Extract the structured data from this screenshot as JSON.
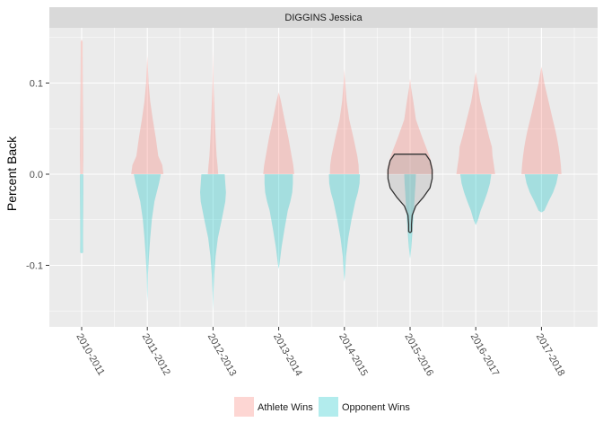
{
  "chart_data": {
    "type": "violin",
    "facet_title": "DIGGINS Jessica",
    "ylabel": "Percent Back",
    "xlabel": "",
    "categories": [
      "2010-2011",
      "2011-2012",
      "2012-2013",
      "2013-2014",
      "2014-2015",
      "2015-2016",
      "2016-2017",
      "2017-2018"
    ],
    "y_ticks": [
      0.1,
      0.0,
      -0.1
    ],
    "y_tick_labels": [
      "0.1",
      "0.0",
      "-0.1"
    ],
    "ylim": [
      -0.16,
      0.16
    ],
    "grid": true,
    "legend_position": "bottom",
    "colors": {
      "athlete_wins": "#f8766d",
      "opponent_wins": "#00bfc4",
      "panel_bg": "#ebebeb",
      "strip_bg": "#d9d9d9",
      "grid": "#ffffff"
    },
    "series": [
      {
        "name": "Athlete Wins",
        "key": "athlete_wins",
        "violins": [
          {
            "category": "2010-2011",
            "profile": [
              [
                0.0,
                0.042
              ],
              [
                0.02,
                0.05
              ],
              [
                0.05,
                0.048
              ],
              [
                0.08,
                0.04
              ],
              [
                0.11,
                0.032
              ],
              [
                0.13,
                0.03
              ],
              [
                0.145,
                0.03
              ],
              [
                0.148,
                0.0
              ]
            ]
          },
          {
            "category": "2011-2012",
            "profile": [
              [
                0.0,
                0.5
              ],
              [
                0.01,
                0.46
              ],
              [
                0.02,
                0.34
              ],
              [
                0.04,
                0.26
              ],
              [
                0.06,
                0.17
              ],
              [
                0.08,
                0.09
              ],
              [
                0.1,
                0.04
              ],
              [
                0.12,
                0.015
              ],
              [
                0.13,
                0.0
              ]
            ]
          },
          {
            "category": "2012-2013",
            "profile": [
              [
                0.0,
                0.16
              ],
              [
                0.01,
                0.14
              ],
              [
                0.02,
                0.11
              ],
              [
                0.04,
                0.08
              ],
              [
                0.06,
                0.055
              ],
              [
                0.08,
                0.035
              ],
              [
                0.1,
                0.015
              ],
              [
                0.12,
                0.006
              ],
              [
                0.135,
                0.0
              ]
            ]
          },
          {
            "category": "2013-2014",
            "profile": [
              [
                0.0,
                0.48
              ],
              [
                0.01,
                0.45
              ],
              [
                0.02,
                0.4
              ],
              [
                0.04,
                0.3
              ],
              [
                0.06,
                0.18
              ],
              [
                0.08,
                0.07
              ],
              [
                0.09,
                0.0
              ]
            ]
          },
          {
            "category": "2014-2015",
            "profile": [
              [
                0.0,
                0.45
              ],
              [
                0.01,
                0.44
              ],
              [
                0.02,
                0.4
              ],
              [
                0.04,
                0.28
              ],
              [
                0.06,
                0.15
              ],
              [
                0.08,
                0.07
              ],
              [
                0.1,
                0.025
              ],
              [
                0.115,
                0.0
              ]
            ]
          },
          {
            "category": "2015-2016",
            "profile": [
              [
                0.0,
                0.72
              ],
              [
                0.01,
                0.68
              ],
              [
                0.02,
                0.6
              ],
              [
                0.04,
                0.38
              ],
              [
                0.06,
                0.18
              ],
              [
                0.08,
                0.1
              ],
              [
                0.095,
                0.03
              ],
              [
                0.105,
                0.0
              ]
            ]
          },
          {
            "category": "2016-2017",
            "profile": [
              [
                0.0,
                0.6
              ],
              [
                0.01,
                0.56
              ],
              [
                0.02,
                0.52
              ],
              [
                0.03,
                0.5
              ],
              [
                0.04,
                0.42
              ],
              [
                0.06,
                0.28
              ],
              [
                0.08,
                0.14
              ],
              [
                0.1,
                0.05
              ],
              [
                0.112,
                0.0
              ]
            ]
          },
          {
            "category": "2017-2018",
            "profile": [
              [
                0.0,
                0.62
              ],
              [
                0.01,
                0.6
              ],
              [
                0.02,
                0.57
              ],
              [
                0.03,
                0.53
              ],
              [
                0.04,
                0.48
              ],
              [
                0.05,
                0.42
              ],
              [
                0.06,
                0.35
              ],
              [
                0.08,
                0.22
              ],
              [
                0.1,
                0.09
              ],
              [
                0.118,
                0.0
              ]
            ]
          }
        ]
      },
      {
        "name": "Opponent Wins",
        "key": "opponent_wins",
        "violins": [
          {
            "category": "2010-2011",
            "profile": [
              [
                0.0,
                0.05
              ],
              [
                -0.02,
                0.05
              ],
              [
                -0.05,
                0.045
              ],
              [
                -0.07,
                0.042
              ],
              [
                -0.086,
                0.045
              ],
              [
                -0.087,
                0.0
              ]
            ]
          },
          {
            "category": "2011-2012",
            "profile": [
              [
                0.0,
                0.42
              ],
              [
                -0.01,
                0.36
              ],
              [
                -0.03,
                0.22
              ],
              [
                -0.05,
                0.14
              ],
              [
                -0.07,
                0.09
              ],
              [
                -0.09,
                0.05
              ],
              [
                -0.11,
                0.02
              ],
              [
                -0.13,
                0.008
              ],
              [
                -0.14,
                0.0
              ]
            ]
          },
          {
            "category": "2012-2013",
            "profile": [
              [
                0.0,
                0.36
              ],
              [
                -0.01,
                0.38
              ],
              [
                -0.02,
                0.4
              ],
              [
                -0.03,
                0.38
              ],
              [
                -0.05,
                0.27
              ],
              [
                -0.07,
                0.15
              ],
              [
                -0.09,
                0.08
              ],
              [
                -0.11,
                0.04
              ],
              [
                -0.13,
                0.015
              ],
              [
                -0.15,
                0.0
              ]
            ]
          },
          {
            "category": "2013-2014",
            "profile": [
              [
                0.0,
                0.44
              ],
              [
                -0.01,
                0.44
              ],
              [
                -0.02,
                0.42
              ],
              [
                -0.03,
                0.36
              ],
              [
                -0.04,
                0.28
              ],
              [
                -0.06,
                0.18
              ],
              [
                -0.08,
                0.09
              ],
              [
                -0.1,
                0.02
              ],
              [
                -0.104,
                0.0
              ]
            ]
          },
          {
            "category": "2014-2015",
            "profile": [
              [
                0.0,
                0.48
              ],
              [
                -0.01,
                0.47
              ],
              [
                -0.02,
                0.42
              ],
              [
                -0.03,
                0.34
              ],
              [
                -0.05,
                0.22
              ],
              [
                -0.07,
                0.12
              ],
              [
                -0.09,
                0.05
              ],
              [
                -0.11,
                0.02
              ],
              [
                -0.118,
                0.0
              ]
            ]
          },
          {
            "category": "2015-2016",
            "profile": [
              [
                0.0,
                0.18
              ],
              [
                -0.01,
                0.17
              ],
              [
                -0.02,
                0.15
              ],
              [
                -0.04,
                0.12
              ],
              [
                -0.06,
                0.08
              ],
              [
                -0.08,
                0.04
              ],
              [
                -0.093,
                0.0
              ]
            ]
          },
          {
            "category": "2016-2017",
            "profile": [
              [
                0.0,
                0.48
              ],
              [
                -0.01,
                0.44
              ],
              [
                -0.02,
                0.36
              ],
              [
                -0.03,
                0.26
              ],
              [
                -0.04,
                0.15
              ],
              [
                -0.05,
                0.07
              ],
              [
                -0.056,
                0.0
              ]
            ]
          },
          {
            "category": "2017-2018",
            "profile": [
              [
                0.0,
                0.52
              ],
              [
                -0.01,
                0.46
              ],
              [
                -0.02,
                0.36
              ],
              [
                -0.03,
                0.22
              ],
              [
                -0.04,
                0.09
              ],
              [
                -0.042,
                0.0
              ]
            ]
          }
        ]
      }
    ],
    "overlay": {
      "category": "2015-2016",
      "style": "outline",
      "color": "#333333",
      "profile": [
        [
          0.022,
          0.44
        ],
        [
          0.015,
          0.56
        ],
        [
          0.005,
          0.62
        ],
        [
          -0.005,
          0.62
        ],
        [
          -0.015,
          0.56
        ],
        [
          -0.025,
          0.38
        ],
        [
          -0.035,
          0.16
        ],
        [
          -0.045,
          0.06
        ],
        [
          -0.055,
          0.04
        ],
        [
          -0.063,
          0.04
        ],
        [
          -0.064,
          0.0
        ]
      ]
    }
  }
}
